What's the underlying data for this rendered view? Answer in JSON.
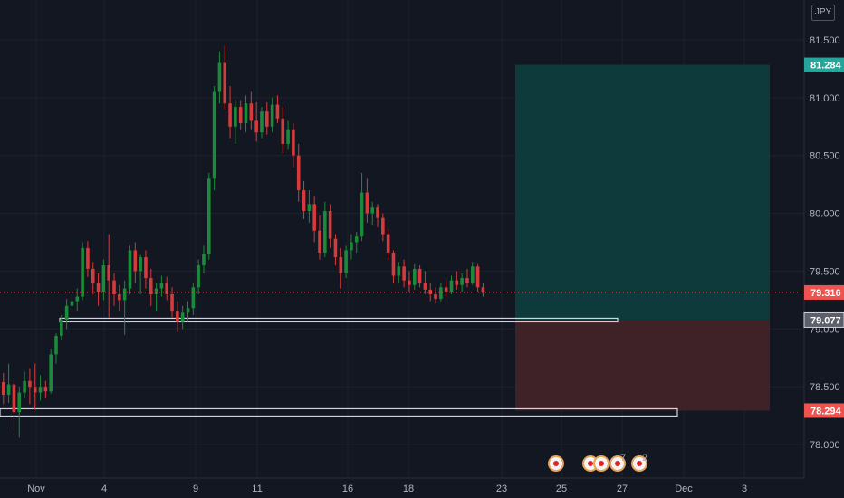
{
  "currency": "JPY",
  "colors": {
    "background": "#131722",
    "up": "#26a69a",
    "down": "#ef5350",
    "up_candle": "#1b8a3a",
    "down_candle": "#d63a3a",
    "target_zone": "#0f3a3c",
    "stop_zone": "#3e2227",
    "line": "#d1d4dc",
    "grid": "#1e222d",
    "text": "#b2b5be"
  },
  "chart_data": {
    "type": "candlestick",
    "ylim": [
      77.7,
      81.75
    ],
    "y_ticks": [
      "81.500",
      "81.000",
      "80.500",
      "80.000",
      "79.500",
      "79.000",
      "78.500",
      "78.000"
    ],
    "x_ticks": [
      "Nov",
      "4",
      "9",
      "11",
      "16",
      "18",
      "23",
      "25",
      "27",
      "Dec",
      "3"
    ],
    "price_tags": [
      {
        "label": "81.284",
        "value": 81.284,
        "kind": "target"
      },
      {
        "label": "79.316",
        "value": 79.316,
        "kind": "last"
      },
      {
        "label": "79.077",
        "value": 79.077,
        "kind": "entry"
      },
      {
        "label": "78.294",
        "value": 78.294,
        "kind": "stop"
      }
    ],
    "horizontal_levels": [
      79.077,
      78.294
    ],
    "position": {
      "entry": 79.077,
      "target": 81.284,
      "stop": 78.294
    },
    "event_markers": [
      {
        "label": ""
      },
      {
        "label": ""
      },
      {
        "label": ""
      },
      {
        "label": "7"
      },
      {
        "label": "2"
      }
    ],
    "candles": [
      [
        78.54,
        78.62,
        78.35,
        78.43
      ],
      [
        78.43,
        78.7,
        78.36,
        78.52
      ],
      [
        78.52,
        78.58,
        78.12,
        78.28
      ],
      [
        78.28,
        78.5,
        78.06,
        78.45
      ],
      [
        78.45,
        78.63,
        78.4,
        78.55
      ],
      [
        78.55,
        78.66,
        78.35,
        78.5
      ],
      [
        78.5,
        78.7,
        78.3,
        78.45
      ],
      [
        78.45,
        78.6,
        78.38,
        78.5
      ],
      [
        78.5,
        78.55,
        78.4,
        78.46
      ],
      [
        78.46,
        78.83,
        78.44,
        78.78
      ],
      [
        78.78,
        78.96,
        78.7,
        78.94
      ],
      [
        78.94,
        79.12,
        78.9,
        79.08
      ],
      [
        79.08,
        79.26,
        79.0,
        79.2
      ],
      [
        79.2,
        79.3,
        79.1,
        79.24
      ],
      [
        79.24,
        79.35,
        79.15,
        79.28
      ],
      [
        79.28,
        79.75,
        79.25,
        79.7
      ],
      [
        79.7,
        79.76,
        79.45,
        79.52
      ],
      [
        79.52,
        79.58,
        79.3,
        79.4
      ],
      [
        79.4,
        79.48,
        79.2,
        79.32
      ],
      [
        79.32,
        79.6,
        79.25,
        79.55
      ],
      [
        79.55,
        79.82,
        79.1,
        79.42
      ],
      [
        79.42,
        79.48,
        79.2,
        79.3
      ],
      [
        79.3,
        79.38,
        79.15,
        79.25
      ],
      [
        79.25,
        79.42,
        78.95,
        79.35
      ],
      [
        79.35,
        79.72,
        79.3,
        79.68
      ],
      [
        79.68,
        79.75,
        79.4,
        79.5
      ],
      [
        79.5,
        79.64,
        79.3,
        79.62
      ],
      [
        79.62,
        79.68,
        79.35,
        79.44
      ],
      [
        79.44,
        79.52,
        79.2,
        79.3
      ],
      [
        79.3,
        79.4,
        79.15,
        79.35
      ],
      [
        79.35,
        79.46,
        79.28,
        79.4
      ],
      [
        79.4,
        79.45,
        79.25,
        79.3
      ],
      [
        79.3,
        79.36,
        79.1,
        79.15
      ],
      [
        79.15,
        79.24,
        78.97,
        79.06
      ],
      [
        79.06,
        79.2,
        79.0,
        79.14
      ],
      [
        79.14,
        79.24,
        79.06,
        79.18
      ],
      [
        79.18,
        79.4,
        79.12,
        79.36
      ],
      [
        79.36,
        79.6,
        79.3,
        79.55
      ],
      [
        79.55,
        79.72,
        79.48,
        79.65
      ],
      [
        79.65,
        80.35,
        79.6,
        80.3
      ],
      [
        80.3,
        81.1,
        80.2,
        81.05
      ],
      [
        81.05,
        81.4,
        80.95,
        81.3
      ],
      [
        81.3,
        81.45,
        80.9,
        80.95
      ],
      [
        80.95,
        81.1,
        80.65,
        80.75
      ],
      [
        80.75,
        80.98,
        80.6,
        80.92
      ],
      [
        80.92,
        80.98,
        80.72,
        80.78
      ],
      [
        80.78,
        81.02,
        80.7,
        80.95
      ],
      [
        80.95,
        81.05,
        80.72,
        80.8
      ],
      [
        80.8,
        80.96,
        80.62,
        80.7
      ],
      [
        80.7,
        80.92,
        80.65,
        80.88
      ],
      [
        80.88,
        80.96,
        80.68,
        80.75
      ],
      [
        80.75,
        81.0,
        80.7,
        80.94
      ],
      [
        80.94,
        81.02,
        80.78,
        80.82
      ],
      [
        80.82,
        80.92,
        80.52,
        80.6
      ],
      [
        80.6,
        80.8,
        80.55,
        80.72
      ],
      [
        80.72,
        80.78,
        80.4,
        80.5
      ],
      [
        80.5,
        80.6,
        80.1,
        80.2
      ],
      [
        80.2,
        80.28,
        79.95,
        80.02
      ],
      [
        80.02,
        80.2,
        79.92,
        80.08
      ],
      [
        80.08,
        80.15,
        79.75,
        79.85
      ],
      [
        79.85,
        79.98,
        79.6,
        79.66
      ],
      [
        79.66,
        80.1,
        79.62,
        80.02
      ],
      [
        80.02,
        80.08,
        79.7,
        79.78
      ],
      [
        79.78,
        79.82,
        79.55,
        79.62
      ],
      [
        79.62,
        79.7,
        79.35,
        79.48
      ],
      [
        79.48,
        79.72,
        79.44,
        79.68
      ],
      [
        79.68,
        79.82,
        79.6,
        79.75
      ],
      [
        79.75,
        79.84,
        79.66,
        79.8
      ],
      [
        79.8,
        80.35,
        79.76,
        80.18
      ],
      [
        80.18,
        80.3,
        79.92,
        80.0
      ],
      [
        80.0,
        80.1,
        79.9,
        80.05
      ],
      [
        80.05,
        80.08,
        79.88,
        79.96
      ],
      [
        79.96,
        80.0,
        79.76,
        79.82
      ],
      [
        79.82,
        79.86,
        79.6,
        79.66
      ],
      [
        79.66,
        79.68,
        79.4,
        79.46
      ],
      [
        79.46,
        79.58,
        79.4,
        79.54
      ],
      [
        79.54,
        79.6,
        79.36,
        79.42
      ],
      [
        79.42,
        79.5,
        79.32,
        79.38
      ],
      [
        79.38,
        79.56,
        79.34,
        79.52
      ],
      [
        79.52,
        79.55,
        79.36,
        79.4
      ],
      [
        79.4,
        79.5,
        79.3,
        79.34
      ],
      [
        79.34,
        79.4,
        79.24,
        79.3
      ],
      [
        79.3,
        79.36,
        79.22,
        79.26
      ],
      [
        79.26,
        79.4,
        79.24,
        79.36
      ],
      [
        79.36,
        79.42,
        79.28,
        79.32
      ],
      [
        79.32,
        79.46,
        79.3,
        79.42
      ],
      [
        79.42,
        79.5,
        79.34,
        79.38
      ],
      [
        79.38,
        79.48,
        79.32,
        79.44
      ],
      [
        79.44,
        79.52,
        79.36,
        79.4
      ],
      [
        79.4,
        79.58,
        79.38,
        79.54
      ],
      [
        79.54,
        79.56,
        79.32,
        79.36
      ],
      [
        79.36,
        79.4,
        79.28,
        79.32
      ]
    ]
  }
}
